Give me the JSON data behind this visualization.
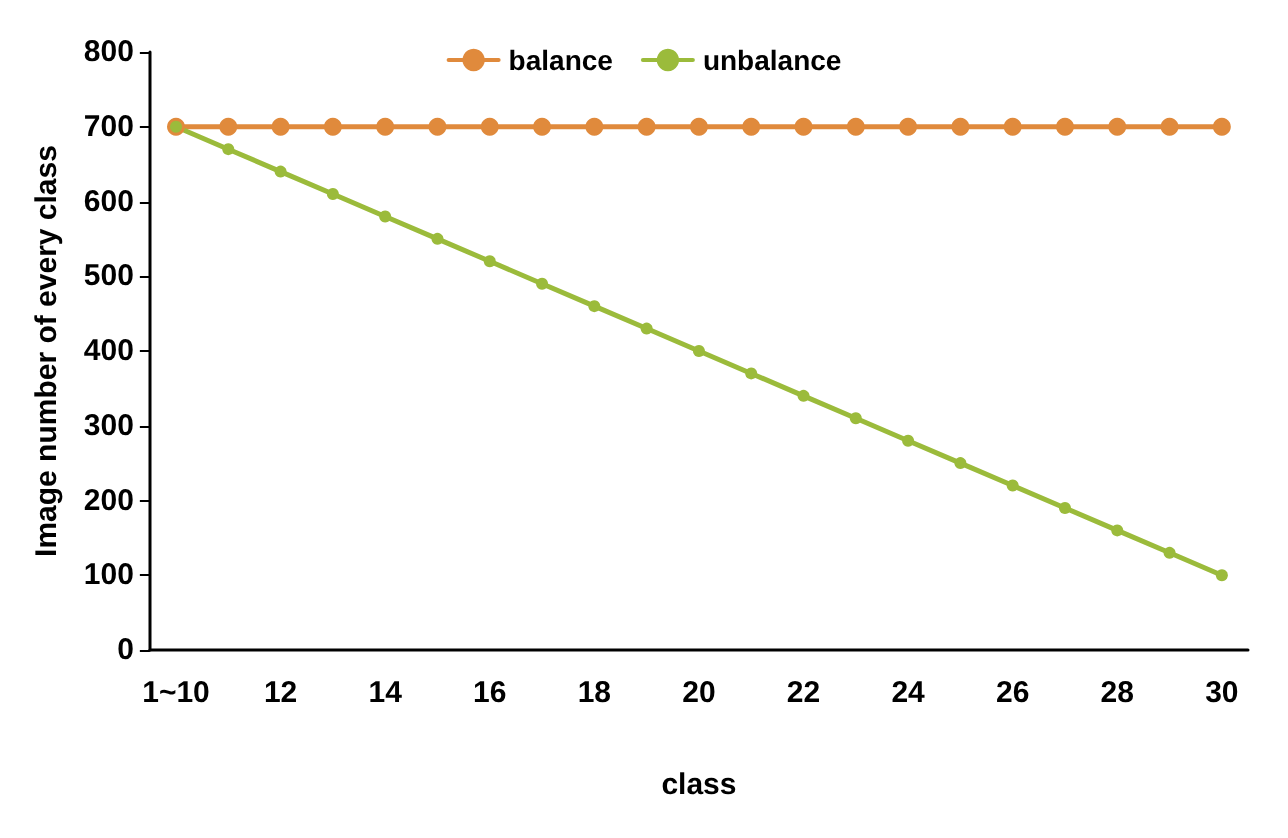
{
  "chart_data": {
    "type": "line",
    "xlabel": "class",
    "ylabel": "Image number of every class",
    "categories": [
      "1~10",
      null,
      "12",
      null,
      "14",
      null,
      "16",
      null,
      "18",
      null,
      "20",
      null,
      "22",
      null,
      "24",
      null,
      "26",
      null,
      "28",
      null,
      "30"
    ],
    "series": [
      {
        "name": "balance",
        "color": "#e08a3c",
        "values": [
          700,
          700,
          700,
          700,
          700,
          700,
          700,
          700,
          700,
          700,
          700,
          700,
          700,
          700,
          700,
          700,
          700,
          700,
          700,
          700,
          700
        ]
      },
      {
        "name": "unbalance",
        "color": "#9bbb3b",
        "values": [
          700,
          670,
          640,
          610,
          580,
          550,
          520,
          490,
          460,
          430,
          400,
          370,
          340,
          310,
          280,
          250,
          220,
          190,
          160,
          130,
          100
        ]
      }
    ],
    "ylim": [
      0,
      800
    ],
    "yticks": [
      0,
      100,
      200,
      300,
      400,
      500,
      600,
      700,
      800
    ],
    "grid": false,
    "legend": "top",
    "marker": "circle",
    "line_style": "solid"
  }
}
